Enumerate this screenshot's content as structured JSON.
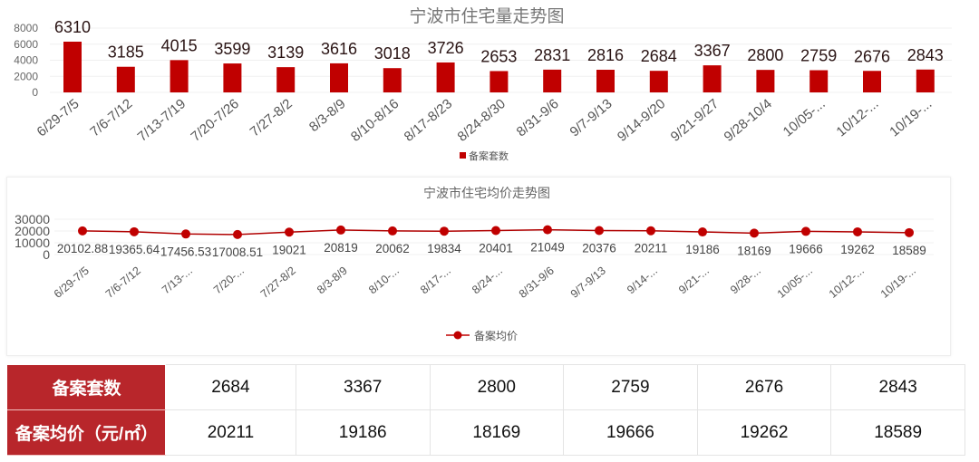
{
  "chart_data": [
    {
      "type": "bar",
      "title": "宁波市住宅量走势图",
      "categories": [
        "6/29-7/5",
        "7/6-7/12",
        "7/13-7/19",
        "7/20-7/26",
        "7/27-8/2",
        "8/3-8/9",
        "8/10-8/16",
        "8/17-8/23",
        "8/24-8/30",
        "8/31-9/6",
        "9/7-9/13",
        "9/14-9/20",
        "9/21-9/27",
        "9/28-10/4",
        "10/05-...",
        "10/12-...",
        "10/19-..."
      ],
      "series": [
        {
          "name": "备案套数",
          "values": [
            6310,
            3185,
            4015,
            3599,
            3139,
            3616,
            3018,
            3726,
            2653,
            2831,
            2816,
            2684,
            3367,
            2800,
            2759,
            2676,
            2843
          ]
        }
      ],
      "yticks": [
        0,
        2000,
        4000,
        6000,
        8000
      ],
      "ylim": [
        0,
        8000
      ],
      "grid": true,
      "legend": "bottom",
      "color": "#c00000"
    },
    {
      "type": "line",
      "title": "宁波市住宅均价走势图",
      "categories": [
        "6/29-7/5",
        "7/6-7/12",
        "7/13-...",
        "7/20-...",
        "7/27-8/2",
        "8/3-8/9",
        "8/10-...",
        "8/17-...",
        "8/24-...",
        "8/31-9/6",
        "9/7-9/13",
        "9/14-...",
        "9/21-...",
        "9/28-...",
        "10/05-...",
        "10/12-...",
        "10/19-..."
      ],
      "series": [
        {
          "name": "备案均价",
          "values": [
            20102.88,
            19365.64,
            17456.53,
            17008.51,
            19021,
            20819,
            20062,
            19834,
            20401,
            21049,
            20376,
            20211,
            19186,
            18169,
            19666,
            19262,
            18589
          ]
        }
      ],
      "value_labels": [
        "20102.88",
        "19365.64",
        "17456.53",
        "17008.51",
        "19021",
        "20819",
        "20062",
        "19834",
        "20401",
        "21049",
        "20376",
        "20211",
        "19186",
        "18169",
        "19666",
        "19262",
        "18589"
      ],
      "yticks": [
        0,
        10000,
        20000,
        30000
      ],
      "ylim": [
        0,
        30000
      ],
      "grid": true,
      "legend": "bottom",
      "color": "#c00000"
    }
  ],
  "table": {
    "rows": [
      {
        "label": "备案套数",
        "values": [
          "2684",
          "3367",
          "2800",
          "2759",
          "2676",
          "2843"
        ]
      },
      {
        "label": "备案均价（元/㎡）",
        "values": [
          "20211",
          "19186",
          "18169",
          "19666",
          "19262",
          "18589"
        ]
      }
    ],
    "header_color": "#b8262b"
  }
}
